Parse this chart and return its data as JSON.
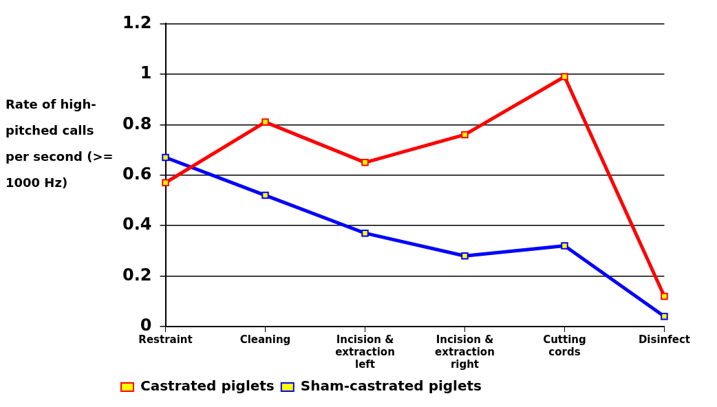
{
  "chart_data": {
    "type": "line",
    "ylabel": "Rate of high-pitched calls per second (>= 1000 Hz)",
    "categories": [
      "Restraint",
      "Cleaning",
      "Incision & extraction left",
      "Incision & extraction right",
      "Cutting cords",
      "Disinfect"
    ],
    "series": [
      {
        "name": "Castrated piglets",
        "color": "#ff0000",
        "values": [
          0.57,
          0.81,
          0.65,
          0.76,
          0.99,
          0.12
        ]
      },
      {
        "name": "Sham-castrated piglets",
        "color": "#0000ff",
        "values": [
          0.67,
          0.52,
          0.37,
          0.28,
          0.32,
          0.04
        ]
      }
    ],
    "ylim": [
      0,
      1.2
    ],
    "yticks": [
      0,
      0.2,
      0.4,
      0.6,
      0.8,
      1,
      1.2
    ],
    "grid": "y",
    "legend": "bottom left",
    "marker": "square",
    "line_style": "solid"
  }
}
